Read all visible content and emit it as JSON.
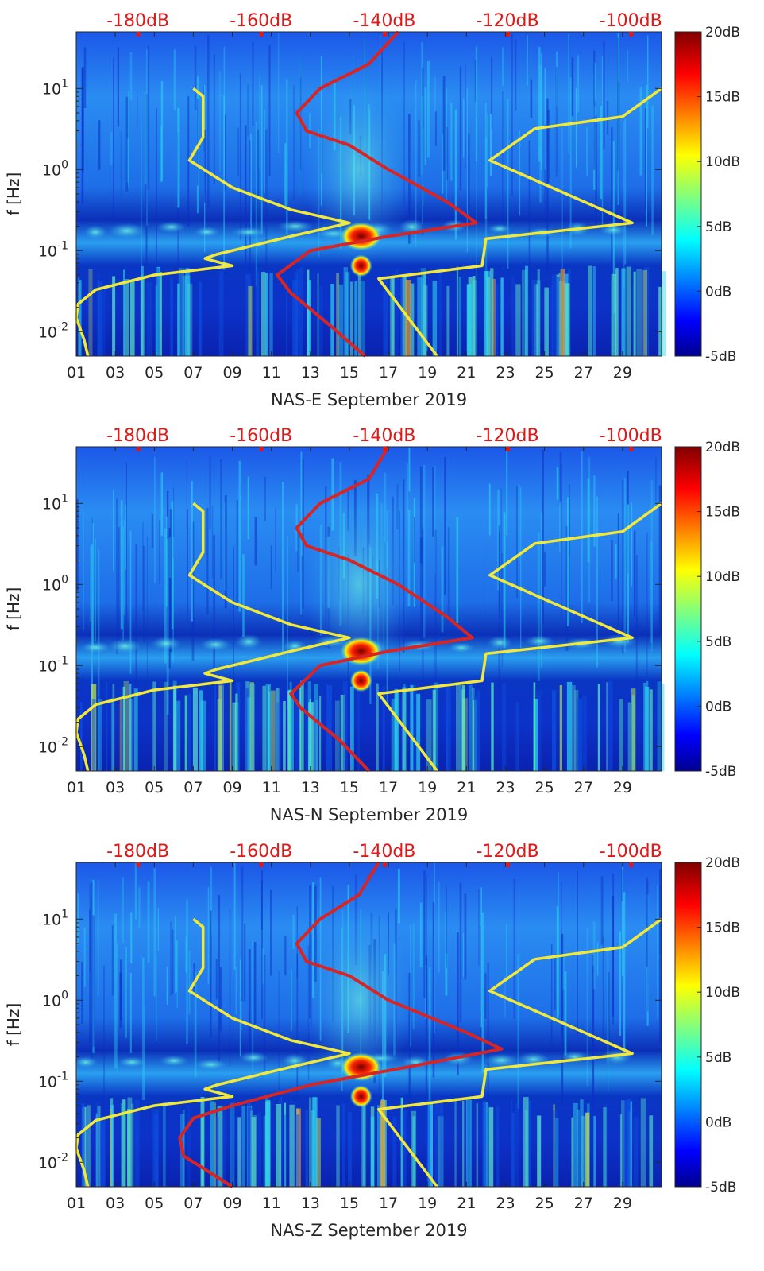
{
  "chart_data": [
    {
      "type": "heatmap",
      "xlabel": "NAS-E September 2019",
      "ylabel": "f [Hz]",
      "x_tick_labels": [
        "01",
        "03",
        "05",
        "07",
        "09",
        "11",
        "13",
        "15",
        "17",
        "19",
        "21",
        "23",
        "25",
        "27",
        "29"
      ],
      "x_range_days": [
        1,
        31
      ],
      "y_scale": "log",
      "ylim": [
        0.005,
        50
      ],
      "y_tick_labels": [
        {
          "base": "10",
          "exp": "-2"
        },
        {
          "base": "10",
          "exp": "-1"
        },
        {
          "base": "10",
          "exp": "0"
        },
        {
          "base": "10",
          "exp": "1"
        }
      ],
      "top_axis_labels": [
        "-180dB",
        "-160dB",
        "-140dB",
        "-120dB",
        "-100dB"
      ],
      "top_axis_db": [
        -180,
        -160,
        -140,
        -120,
        -100
      ],
      "top_axis_range_db": [
        -190,
        -95
      ],
      "colorbar": {
        "labels": [
          "20dB",
          "15dB",
          "10dB",
          "5dB",
          "0dB",
          "-5dB"
        ],
        "range": [
          -5,
          20
        ],
        "colormap": "jet"
      },
      "grid": false,
      "series": [
        {
          "color": "#f2e83a",
          "points": [
            [
              7.0,
              10
            ],
            [
              7.5,
              8
            ],
            [
              7.5,
              2.5
            ],
            [
              6.8,
              1.3
            ],
            [
              9,
              0.6
            ],
            [
              12,
              0.32
            ],
            [
              15,
              0.22
            ],
            [
              12,
              0.15
            ],
            [
              8.2,
              0.09
            ],
            [
              7.6,
              0.08
            ],
            [
              9,
              0.065
            ],
            [
              5,
              0.05
            ],
            [
              2,
              0.033
            ],
            [
              1.1,
              0.022
            ],
            [
              1.0,
              0.015
            ],
            [
              1.4,
              0.008
            ],
            [
              1.6,
              0.005
            ]
          ]
        },
        {
          "color": "#f2e83a",
          "points": [
            [
              31,
              10
            ],
            [
              29,
              4.5
            ],
            [
              24.5,
              3.2
            ],
            [
              22.2,
              1.3
            ],
            [
              29.5,
              0.22
            ],
            [
              22,
              0.14
            ],
            [
              21.8,
              0.065
            ],
            [
              16.5,
              0.045
            ],
            [
              18,
              0.015
            ],
            [
              19.5,
              0.005
            ]
          ]
        },
        {
          "color": "#d72525",
          "points": [
            [
              17.5,
              50
            ],
            [
              16,
              20
            ],
            [
              13.5,
              10
            ],
            [
              12.3,
              5
            ],
            [
              12.8,
              3
            ],
            [
              15,
              2
            ],
            [
              17,
              1
            ],
            [
              20,
              0.4
            ],
            [
              21.5,
              0.22
            ],
            [
              17,
              0.15
            ],
            [
              13,
              0.1
            ],
            [
              11.3,
              0.05
            ],
            [
              12,
              0.03
            ],
            [
              14,
              0.012
            ],
            [
              15.8,
              0.005
            ]
          ]
        }
      ]
    },
    {
      "type": "heatmap",
      "xlabel": "NAS-N September 2019",
      "ylabel": "f [Hz]",
      "x_tick_labels": [
        "01",
        "03",
        "05",
        "07",
        "09",
        "11",
        "13",
        "15",
        "17",
        "19",
        "21",
        "23",
        "25",
        "27",
        "29"
      ],
      "x_range_days": [
        1,
        31
      ],
      "y_scale": "log",
      "ylim": [
        0.005,
        50
      ],
      "y_tick_labels": [
        {
          "base": "10",
          "exp": "-2"
        },
        {
          "base": "10",
          "exp": "-1"
        },
        {
          "base": "10",
          "exp": "0"
        },
        {
          "base": "10",
          "exp": "1"
        }
      ],
      "top_axis_labels": [
        "-180dB",
        "-160dB",
        "-140dB",
        "-120dB",
        "-100dB"
      ],
      "top_axis_db": [
        -180,
        -160,
        -140,
        -120,
        -100
      ],
      "top_axis_range_db": [
        -190,
        -95
      ],
      "colorbar": {
        "labels": [
          "20dB",
          "15dB",
          "10dB",
          "5dB",
          "0dB",
          "-5dB"
        ],
        "range": [
          -5,
          20
        ],
        "colormap": "jet"
      },
      "grid": false,
      "series": [
        {
          "color": "#f2e83a",
          "points": [
            [
              7.0,
              10
            ],
            [
              7.5,
              8
            ],
            [
              7.5,
              2.5
            ],
            [
              6.8,
              1.3
            ],
            [
              9,
              0.6
            ],
            [
              12,
              0.32
            ],
            [
              15,
              0.22
            ],
            [
              12,
              0.15
            ],
            [
              8.2,
              0.09
            ],
            [
              7.6,
              0.08
            ],
            [
              9,
              0.065
            ],
            [
              5,
              0.05
            ],
            [
              2,
              0.033
            ],
            [
              1.1,
              0.022
            ],
            [
              1.0,
              0.015
            ],
            [
              1.4,
              0.008
            ],
            [
              1.6,
              0.005
            ]
          ]
        },
        {
          "color": "#f2e83a",
          "points": [
            [
              31,
              10
            ],
            [
              29,
              4.5
            ],
            [
              24.5,
              3.2
            ],
            [
              22.2,
              1.3
            ],
            [
              29.5,
              0.22
            ],
            [
              22,
              0.14
            ],
            [
              21.8,
              0.065
            ],
            [
              16.5,
              0.045
            ],
            [
              18,
              0.015
            ],
            [
              19.5,
              0.005
            ]
          ]
        },
        {
          "color": "#d72525",
          "points": [
            [
              17,
              50
            ],
            [
              16,
              20
            ],
            [
              13.5,
              10
            ],
            [
              12.3,
              5
            ],
            [
              12.8,
              3
            ],
            [
              15,
              2
            ],
            [
              17.5,
              1
            ],
            [
              20,
              0.4
            ],
            [
              21.3,
              0.22
            ],
            [
              17,
              0.15
            ],
            [
              13.5,
              0.1
            ],
            [
              12,
              0.045
            ],
            [
              12.5,
              0.03
            ],
            [
              14.5,
              0.012
            ],
            [
              16,
              0.005
            ]
          ]
        }
      ]
    },
    {
      "type": "heatmap",
      "xlabel": "NAS-Z September 2019",
      "ylabel": "f [Hz]",
      "x_tick_labels": [
        "01",
        "03",
        "05",
        "07",
        "09",
        "11",
        "13",
        "15",
        "17",
        "19",
        "21",
        "23",
        "25",
        "27",
        "29"
      ],
      "x_range_days": [
        1,
        31
      ],
      "y_scale": "log",
      "ylim": [
        0.005,
        50
      ],
      "y_tick_labels": [
        {
          "base": "10",
          "exp": "-2"
        },
        {
          "base": "10",
          "exp": "-1"
        },
        {
          "base": "10",
          "exp": "0"
        },
        {
          "base": "10",
          "exp": "1"
        }
      ],
      "top_axis_labels": [
        "-180dB",
        "-160dB",
        "-140dB",
        "-120dB",
        "-100dB"
      ],
      "top_axis_db": [
        -180,
        -160,
        -140,
        -120,
        -100
      ],
      "top_axis_range_db": [
        -190,
        -95
      ],
      "colorbar": {
        "labels": [
          "20dB",
          "15dB",
          "10dB",
          "5dB",
          "0dB",
          "-5dB"
        ],
        "range": [
          -5,
          20
        ],
        "colormap": "jet"
      },
      "grid": false,
      "series": [
        {
          "color": "#f2e83a",
          "points": [
            [
              7.0,
              10
            ],
            [
              7.5,
              8
            ],
            [
              7.5,
              2.5
            ],
            [
              6.8,
              1.3
            ],
            [
              9,
              0.6
            ],
            [
              12,
              0.32
            ],
            [
              15,
              0.22
            ],
            [
              12,
              0.15
            ],
            [
              8.2,
              0.09
            ],
            [
              7.6,
              0.08
            ],
            [
              9,
              0.065
            ],
            [
              5,
              0.05
            ],
            [
              2,
              0.033
            ],
            [
              1.1,
              0.022
            ],
            [
              1.0,
              0.015
            ],
            [
              1.4,
              0.008
            ],
            [
              1.6,
              0.005
            ]
          ]
        },
        {
          "color": "#f2e83a",
          "points": [
            [
              31,
              10
            ],
            [
              29,
              4.5
            ],
            [
              24.5,
              3.2
            ],
            [
              22.2,
              1.3
            ],
            [
              29.5,
              0.22
            ],
            [
              22,
              0.14
            ],
            [
              21.8,
              0.065
            ],
            [
              16.5,
              0.045
            ],
            [
              18,
              0.015
            ],
            [
              19.5,
              0.005
            ]
          ]
        },
        {
          "color": "#d72525",
          "points": [
            [
              16.5,
              50
            ],
            [
              15.5,
              20
            ],
            [
              13.5,
              10
            ],
            [
              12.3,
              5
            ],
            [
              12.8,
              3
            ],
            [
              15,
              2
            ],
            [
              17,
              1
            ],
            [
              21,
              0.4
            ],
            [
              22.8,
              0.25
            ],
            [
              18,
              0.15
            ],
            [
              13,
              0.09
            ],
            [
              9,
              0.05
            ],
            [
              7,
              0.035
            ],
            [
              6.3,
              0.02
            ],
            [
              6.5,
              0.012
            ],
            [
              9,
              0.005
            ]
          ]
        }
      ]
    }
  ]
}
